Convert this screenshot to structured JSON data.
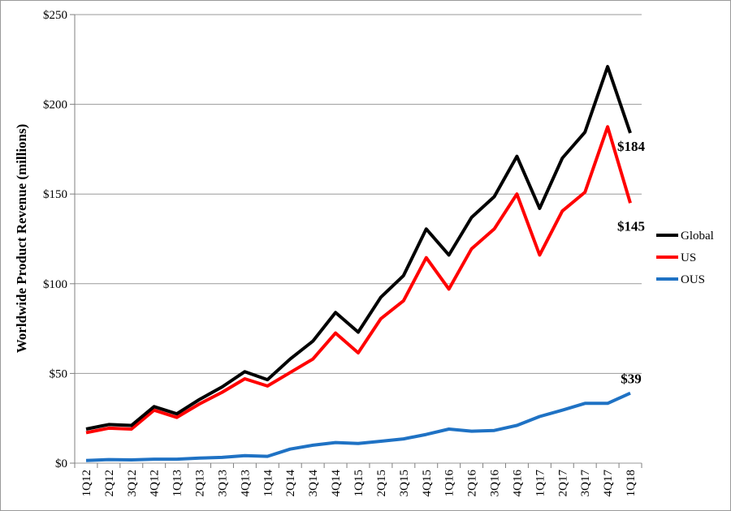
{
  "chart_data": {
    "type": "line",
    "title": "",
    "xlabel": "",
    "ylabel": "Worldwide Product Revenue (millions)",
    "categories": [
      "1Q12",
      "2Q12",
      "3Q12",
      "4Q12",
      "1Q13",
      "2Q13",
      "3Q13",
      "4Q13",
      "1Q14",
      "2Q14",
      "3Q14",
      "4Q14",
      "1Q15",
      "2Q15",
      "3Q15",
      "4Q15",
      "1Q16",
      "2Q16",
      "3Q16",
      "4Q16",
      "1Q17",
      "2Q17",
      "3Q17",
      "4Q17",
      "1Q18"
    ],
    "ylim": [
      0,
      250
    ],
    "yticks": [
      0,
      50,
      100,
      150,
      200,
      250
    ],
    "ytick_labels": [
      "$0",
      "$50",
      "$100",
      "$150",
      "$200",
      "$250"
    ],
    "grid": true,
    "legend_position": "right",
    "series": [
      {
        "name": "Global",
        "color": "#000000",
        "values": [
          19,
          21.5,
          21,
          31.5,
          27.5,
          35.5,
          42.5,
          51,
          46.5,
          58,
          68,
          84,
          73,
          92.5,
          104.5,
          130.5,
          116,
          137,
          148.5,
          171,
          142,
          170,
          184.5,
          221,
          184
        ]
      },
      {
        "name": "US",
        "color": "#ff0000",
        "values": [
          17,
          19.5,
          19,
          29.5,
          25.5,
          33,
          39.5,
          47,
          43,
          50.5,
          58,
          72.5,
          61.5,
          80.5,
          90.5,
          114.5,
          97,
          119.5,
          130.5,
          150,
          116,
          140.5,
          151,
          187.5,
          145
        ]
      },
      {
        "name": "OUS",
        "color": "#1f72c4",
        "values": [
          1.5,
          2,
          1.8,
          2.2,
          2.2,
          2.8,
          3.2,
          4.2,
          3.8,
          7.8,
          10,
          11.5,
          11,
          12.2,
          13.5,
          16,
          19,
          17.8,
          18.2,
          21,
          26,
          29.5,
          33.3,
          33.3,
          39
        ]
      }
    ],
    "annotations": [
      {
        "series": "Global",
        "text": "$184"
      },
      {
        "series": "US",
        "text": "$145"
      },
      {
        "series": "OUS",
        "text": "$39"
      }
    ]
  }
}
